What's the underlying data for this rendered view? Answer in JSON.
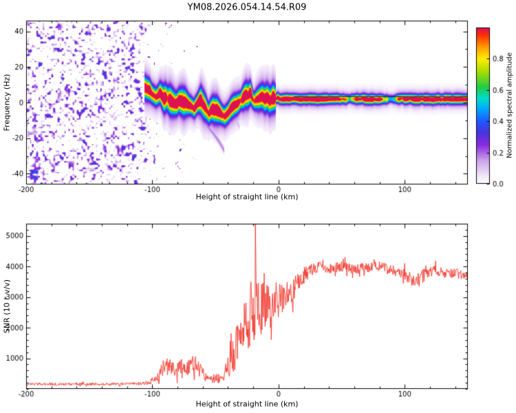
{
  "title": "YM08.2026.054.14.54.R09",
  "chart_data": [
    {
      "type": "heatmap",
      "xlabel": "Height of straight line (km)",
      "ylabel": "Frequency (Hz)",
      "xlim": [
        -200,
        150
      ],
      "ylim": [
        -46,
        46
      ],
      "xticks": [
        -200,
        -100,
        0,
        100
      ],
      "yticks": [
        -40,
        -20,
        0,
        20,
        40
      ],
      "colorbar": {
        "label": "Normalized spectral amplitude",
        "ticks": [
          0,
          0.2,
          0.4,
          0.6,
          0.8
        ],
        "range": [
          0,
          1
        ],
        "stops": [
          [
            0,
            "#ffffff"
          ],
          [
            0.05,
            "#f3e8fb"
          ],
          [
            0.15,
            "#cba4ea"
          ],
          [
            0.25,
            "#8a2be2"
          ],
          [
            0.33,
            "#4734dd"
          ],
          [
            0.4,
            "#2256ff"
          ],
          [
            0.48,
            "#00a8ff"
          ],
          [
            0.55,
            "#00ddcc"
          ],
          [
            0.62,
            "#22cc44"
          ],
          [
            0.72,
            "#aadd00"
          ],
          [
            0.8,
            "#ffee00"
          ],
          [
            0.88,
            "#ff9900"
          ],
          [
            0.95,
            "#ff3300"
          ],
          [
            1,
            "#dd1155"
          ]
        ]
      },
      "noise_region": {
        "x_start": -200,
        "x_end": -110,
        "description": "dense low-amplitude purple speckle noise over full frequency range, fading out toward -70 km",
        "max_amplitude": 0.42
      },
      "trace": {
        "x_start": -106.5,
        "description": "wandering echo trace near 0 Hz, high amplitude; narrow flat red line for x > 0",
        "control_points": [
          [
            -106,
            8,
            0.8
          ],
          [
            -103,
            6,
            0.9
          ],
          [
            -100,
            4.5,
            0.85
          ],
          [
            -97,
            3,
            0.9
          ],
          [
            -94,
            5.5,
            0.95
          ],
          [
            -91,
            2.5,
            0.9
          ],
          [
            -88,
            1,
            0.85
          ],
          [
            -85,
            0,
            0.9
          ],
          [
            -82,
            -1.5,
            0.9
          ],
          [
            -79,
            2.5,
            0.95
          ],
          [
            -76,
            1.5,
            0.9
          ],
          [
            -73,
            -1,
            0.85
          ],
          [
            -70,
            -2.5,
            0.9
          ],
          [
            -67,
            -4,
            0.9
          ],
          [
            -64,
            -1,
            0.9
          ],
          [
            -61,
            0.5,
            0.95
          ],
          [
            -58,
            -2.5,
            0.9
          ],
          [
            -55,
            -5,
            0.85
          ],
          [
            -52,
            -3.5,
            0.9
          ],
          [
            -49,
            -4.5,
            0.9
          ],
          [
            -46,
            -6,
            0.9
          ],
          [
            -43,
            -7,
            0.85
          ],
          [
            -40,
            -5.5,
            0.9
          ],
          [
            -37,
            -3,
            0.9
          ],
          [
            -34,
            -1,
            0.9
          ],
          [
            -31,
            0.5,
            0.85
          ],
          [
            -28,
            3,
            0.9
          ],
          [
            -25,
            5.5,
            0.9
          ],
          [
            -22,
            4.5,
            0.95
          ],
          [
            -19,
            1.5,
            0.8
          ],
          [
            -16,
            2.5,
            0.85
          ],
          [
            -13,
            4,
            0.9
          ],
          [
            -10,
            2.5,
            0.85
          ],
          [
            -7,
            1.5,
            0.9
          ],
          [
            -4,
            2,
            0.9
          ],
          [
            0,
            2,
            0.95
          ],
          [
            10,
            1.9,
            1
          ],
          [
            25,
            1.9,
            0.95
          ],
          [
            40,
            2,
            0.95
          ],
          [
            52,
            1.9,
            0.7
          ],
          [
            57,
            1.9,
            0.5
          ],
          [
            62,
            2,
            0.9
          ],
          [
            75,
            1.9,
            0.95
          ],
          [
            85,
            1.9,
            0.6
          ],
          [
            90,
            1.9,
            0.35
          ],
          [
            95,
            2,
            0.85
          ],
          [
            103,
            2.2,
            0.9
          ],
          [
            108,
            1.9,
            0.95
          ],
          [
            120,
            1.9,
            0.9
          ],
          [
            135,
            1.9,
            0.95
          ],
          [
            150,
            1.9,
            0.9
          ]
        ]
      },
      "dark_line": {
        "x_start": 12,
        "x_end": 150,
        "freq_hz": 3.4,
        "color": "#2a2a2a"
      },
      "faint_arcs": [
        {
          "amp": 0.18,
          "width": 1.3,
          "points": [
            [
              -72,
              -2
            ],
            [
              -65,
              -7
            ],
            [
              -58,
              -12
            ],
            [
              -52,
              -17
            ],
            [
              -47,
              -22
            ],
            [
              -43,
              -27
            ]
          ]
        },
        {
          "amp": 0.13,
          "width": 1.1,
          "points": [
            [
              -38,
              -5
            ],
            [
              -34,
              -9
            ],
            [
              -31,
              -14
            ]
          ]
        }
      ]
    },
    {
      "type": "line",
      "xlabel": "Height of straight line (km)",
      "ylabel": "SNR (10 * v/v)",
      "xlim": [
        -200,
        150
      ],
      "ylim": [
        0,
        5400
      ],
      "xticks": [
        -200,
        -100,
        0,
        100
      ],
      "yticks": [
        1000,
        2000,
        3000,
        4000,
        5000
      ],
      "color": "#f03328",
      "spike": {
        "x": -18.5,
        "value": 5400
      },
      "envelope": [
        [
          -200,
          160,
          45
        ],
        [
          -180,
          155,
          45
        ],
        [
          -160,
          160,
          45
        ],
        [
          -140,
          155,
          45
        ],
        [
          -125,
          160,
          45
        ],
        [
          -112,
          165,
          50
        ],
        [
          -103,
          200,
          70
        ],
        [
          -97,
          330,
          150
        ],
        [
          -92,
          650,
          260
        ],
        [
          -87,
          750,
          280
        ],
        [
          -82,
          650,
          260
        ],
        [
          -77,
          800,
          280
        ],
        [
          -72,
          700,
          260
        ],
        [
          -67,
          850,
          280
        ],
        [
          -62,
          600,
          250
        ],
        [
          -57,
          380,
          160
        ],
        [
          -52,
          320,
          130
        ],
        [
          -47,
          350,
          160
        ],
        [
          -43,
          500,
          250
        ],
        [
          -39,
          800,
          400
        ],
        [
          -35,
          1200,
          600
        ],
        [
          -31,
          1700,
          700
        ],
        [
          -27,
          2100,
          800
        ],
        [
          -23,
          2400,
          1100
        ],
        [
          -20,
          2800,
          1500
        ],
        [
          -18,
          3300,
          1900
        ],
        [
          -16,
          2500,
          1000
        ],
        [
          -13,
          2700,
          900
        ],
        [
          -10,
          2900,
          800
        ],
        [
          -7,
          2600,
          700
        ],
        [
          -4,
          2700,
          600
        ],
        [
          0,
          2900,
          550
        ],
        [
          4,
          3000,
          480
        ],
        [
          8,
          3100,
          420
        ],
        [
          12,
          3300,
          380
        ],
        [
          16,
          3500,
          320
        ],
        [
          20,
          3700,
          280
        ],
        [
          25,
          3850,
          220
        ],
        [
          30,
          3980,
          190
        ],
        [
          40,
          3950,
          170
        ],
        [
          50,
          4000,
          170
        ],
        [
          60,
          3920,
          170
        ],
        [
          70,
          3960,
          170
        ],
        [
          80,
          4010,
          170
        ],
        [
          90,
          3870,
          170
        ],
        [
          98,
          3800,
          180
        ],
        [
          104,
          3620,
          220
        ],
        [
          110,
          3520,
          260
        ],
        [
          115,
          3700,
          210
        ],
        [
          122,
          3870,
          170
        ],
        [
          130,
          3820,
          170
        ],
        [
          140,
          3780,
          160
        ],
        [
          150,
          3680,
          130
        ]
      ]
    }
  ]
}
